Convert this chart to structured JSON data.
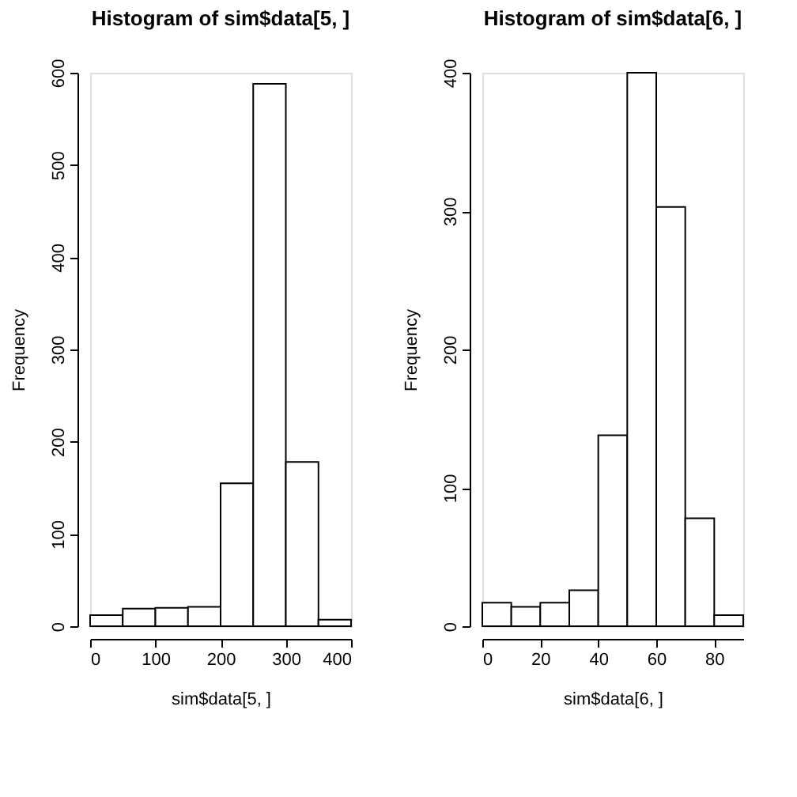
{
  "chart_data": [
    {
      "type": "histogram",
      "title": "Histogram of sim$data[5, ]",
      "xlabel": "sim$data[5, ]",
      "ylabel": "Frequency",
      "bins": [
        0,
        50,
        100,
        150,
        200,
        250,
        300,
        350,
        400
      ],
      "values": [
        12,
        19,
        20,
        21,
        155,
        588,
        178,
        7
      ],
      "color": "#ffffff",
      "xlim": [
        0,
        400
      ],
      "xticks": [
        0,
        100,
        200,
        300,
        400
      ],
      "ylim": [
        0,
        600
      ],
      "yticks": [
        0,
        100,
        200,
        300,
        400,
        500,
        600
      ],
      "grid": false
    },
    {
      "type": "histogram",
      "title": "Histogram of sim$data[6, ]",
      "xlabel": "sim$data[6, ]",
      "ylabel": "Frequency",
      "bins": [
        0,
        10,
        20,
        30,
        40,
        50,
        60,
        70,
        80,
        90
      ],
      "values": [
        17,
        14,
        17,
        26,
        138,
        400,
        303,
        78,
        8
      ],
      "color": "#ffffff",
      "xlim": [
        0,
        90
      ],
      "xticks": [
        0,
        20,
        40,
        60,
        80
      ],
      "ylim": [
        0,
        400
      ],
      "yticks": [
        0,
        100,
        200,
        300,
        400
      ],
      "grid": false
    }
  ]
}
